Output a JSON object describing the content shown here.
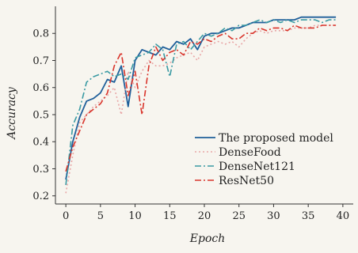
{
  "chart_data": {
    "type": "line",
    "title": "",
    "xlabel": "Epoch",
    "ylabel": "Accuracy",
    "xlim": [
      -1.5,
      41.5
    ],
    "ylim": [
      0.17,
      0.9
    ],
    "xticks": [
      0,
      5,
      10,
      15,
      20,
      25,
      30,
      35,
      40
    ],
    "yticks": [
      0.2,
      0.3,
      0.4,
      0.5,
      0.6,
      0.7,
      0.8
    ],
    "grid": false,
    "legend_position": "bottom-right",
    "x": [
      0,
      1,
      2,
      3,
      4,
      5,
      6,
      7,
      8,
      9,
      10,
      11,
      12,
      13,
      14,
      15,
      16,
      17,
      18,
      19,
      20,
      21,
      22,
      23,
      24,
      25,
      26,
      27,
      28,
      29,
      30,
      31,
      32,
      33,
      34,
      35,
      36,
      37,
      38,
      39,
      40
    ],
    "series": [
      {
        "name": "The proposed model",
        "color": "#1f5f9a",
        "dash": "solid",
        "values": [
          0.26,
          0.4,
          0.49,
          0.55,
          0.56,
          0.58,
          0.63,
          0.62,
          0.68,
          0.53,
          0.7,
          0.74,
          0.73,
          0.72,
          0.75,
          0.74,
          0.77,
          0.76,
          0.78,
          0.74,
          0.79,
          0.8,
          0.8,
          0.81,
          0.82,
          0.82,
          0.83,
          0.84,
          0.84,
          0.84,
          0.85,
          0.85,
          0.85,
          0.85,
          0.86,
          0.86,
          0.86,
          0.86,
          0.86,
          0.86,
          null
        ]
      },
      {
        "name": "DenseFood",
        "color": "#e8a6a6",
        "dash": "dotted",
        "values": [
          0.21,
          0.35,
          0.47,
          0.5,
          0.53,
          0.55,
          0.57,
          0.6,
          0.5,
          0.66,
          0.6,
          0.66,
          0.7,
          0.68,
          0.68,
          0.69,
          0.71,
          0.72,
          0.73,
          0.7,
          0.75,
          0.76,
          0.77,
          0.76,
          0.77,
          0.75,
          0.78,
          0.8,
          0.81,
          0.8,
          0.81,
          0.81,
          0.81,
          0.82,
          0.82,
          0.82,
          0.83,
          0.83,
          0.83,
          0.83,
          null
        ]
      },
      {
        "name": "DenseNet121",
        "color": "#3a9aa3",
        "dash": "dashdot",
        "values": [
          0.24,
          0.46,
          0.52,
          0.62,
          0.64,
          0.65,
          0.66,
          0.64,
          0.65,
          0.63,
          0.71,
          0.72,
          0.73,
          0.76,
          0.74,
          0.64,
          0.76,
          0.77,
          0.74,
          0.77,
          0.8,
          0.79,
          0.8,
          0.82,
          0.81,
          0.83,
          0.83,
          0.84,
          0.85,
          0.84,
          0.85,
          0.84,
          0.85,
          0.84,
          0.85,
          0.85,
          0.85,
          0.84,
          0.85,
          0.85,
          null
        ]
      },
      {
        "name": "ResNet50",
        "color": "#d9342b",
        "dash": "dashdot",
        "values": [
          0.29,
          0.38,
          0.44,
          0.5,
          0.52,
          0.54,
          0.58,
          0.68,
          0.73,
          0.57,
          0.66,
          0.5,
          0.68,
          0.75,
          0.7,
          0.73,
          0.74,
          0.72,
          0.77,
          0.76,
          0.78,
          0.77,
          0.79,
          0.8,
          0.78,
          0.78,
          0.8,
          0.8,
          0.82,
          0.81,
          0.82,
          0.82,
          0.81,
          0.83,
          0.82,
          0.82,
          0.82,
          0.83,
          0.83,
          0.83,
          null
        ]
      }
    ]
  }
}
